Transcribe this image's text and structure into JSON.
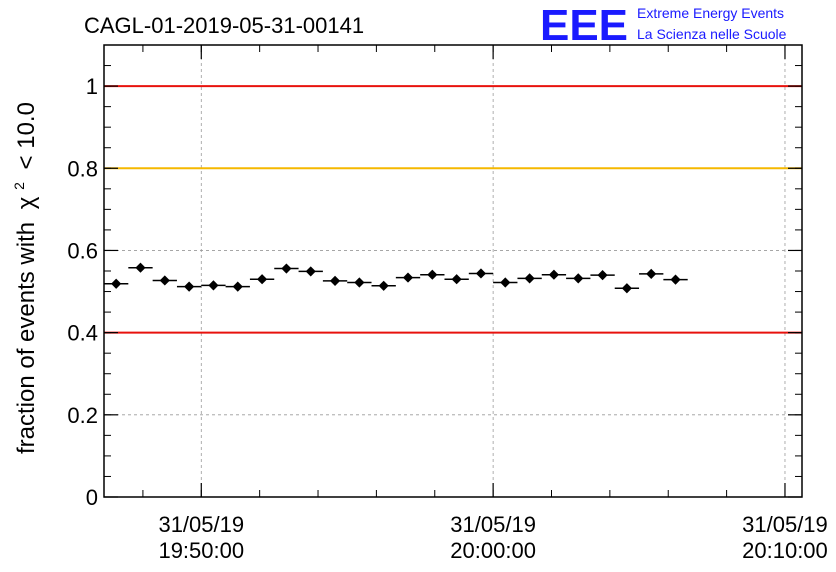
{
  "header": {
    "run_title": "CAGL-01-2019-05-31-00141",
    "logo_text": "EEE",
    "brand_line1": "Extreme Energy Events",
    "brand_line2": "La Scienza nelle Scuole"
  },
  "colors": {
    "red_threshold": "#e8120d",
    "orange_threshold": "#f5b800",
    "logo_blue": "#1a1aff"
  },
  "chart_data": {
    "type": "scatter",
    "title": "CAGL-01-2019-05-31-00141",
    "ylabel": "fraction of events with",
    "ylabel_symbol": "χ",
    "ylabel_superscript": "2",
    "ylabel_cut": "< 10.0",
    "ylim": [
      0,
      1.1
    ],
    "xlim": [
      "31/05/19 19:46:40",
      "31/05/19 20:10:35"
    ],
    "grid": true,
    "y_ticks": [
      {
        "value": 0,
        "label": "0"
      },
      {
        "value": 0.2,
        "label": "0.2"
      },
      {
        "value": 0.4,
        "label": "0.4"
      },
      {
        "value": 0.6,
        "label": "0.6"
      },
      {
        "value": 0.8,
        "label": "0.8"
      },
      {
        "value": 1,
        "label": "1"
      }
    ],
    "x_ticks": [
      {
        "time": "19:50:00",
        "date": "31/05/19"
      },
      {
        "time": "20:00:00",
        "date": "31/05/19"
      },
      {
        "time": "20:10:00",
        "date": "31/05/19"
      }
    ],
    "thresholds": [
      {
        "value": 1.0,
        "color": "#e8120d"
      },
      {
        "value": 0.8,
        "color": "#f5b800"
      },
      {
        "value": 0.4,
        "color": "#e8120d"
      }
    ],
    "bin_width_seconds": 50,
    "points": [
      {
        "x": "19:47:05",
        "y": 0.519
      },
      {
        "x": "19:47:55",
        "y": 0.558
      },
      {
        "x": "19:48:45",
        "y": 0.527
      },
      {
        "x": "19:49:35",
        "y": 0.512
      },
      {
        "x": "19:50:25",
        "y": 0.515
      },
      {
        "x": "19:51:15",
        "y": 0.512
      },
      {
        "x": "19:52:05",
        "y": 0.53
      },
      {
        "x": "19:52:55",
        "y": 0.556
      },
      {
        "x": "19:53:45",
        "y": 0.549
      },
      {
        "x": "19:54:35",
        "y": 0.526
      },
      {
        "x": "19:55:25",
        "y": 0.522
      },
      {
        "x": "19:56:15",
        "y": 0.514
      },
      {
        "x": "19:57:05",
        "y": 0.534
      },
      {
        "x": "19:57:55",
        "y": 0.541
      },
      {
        "x": "19:58:45",
        "y": 0.53
      },
      {
        "x": "19:59:35",
        "y": 0.544
      },
      {
        "x": "20:00:25",
        "y": 0.522
      },
      {
        "x": "20:01:15",
        "y": 0.532
      },
      {
        "x": "20:02:05",
        "y": 0.541
      },
      {
        "x": "20:02:55",
        "y": 0.532
      },
      {
        "x": "20:03:45",
        "y": 0.54
      },
      {
        "x": "20:04:35",
        "y": 0.508
      },
      {
        "x": "20:05:25",
        "y": 0.543
      },
      {
        "x": "20:06:15",
        "y": 0.529
      }
    ]
  }
}
